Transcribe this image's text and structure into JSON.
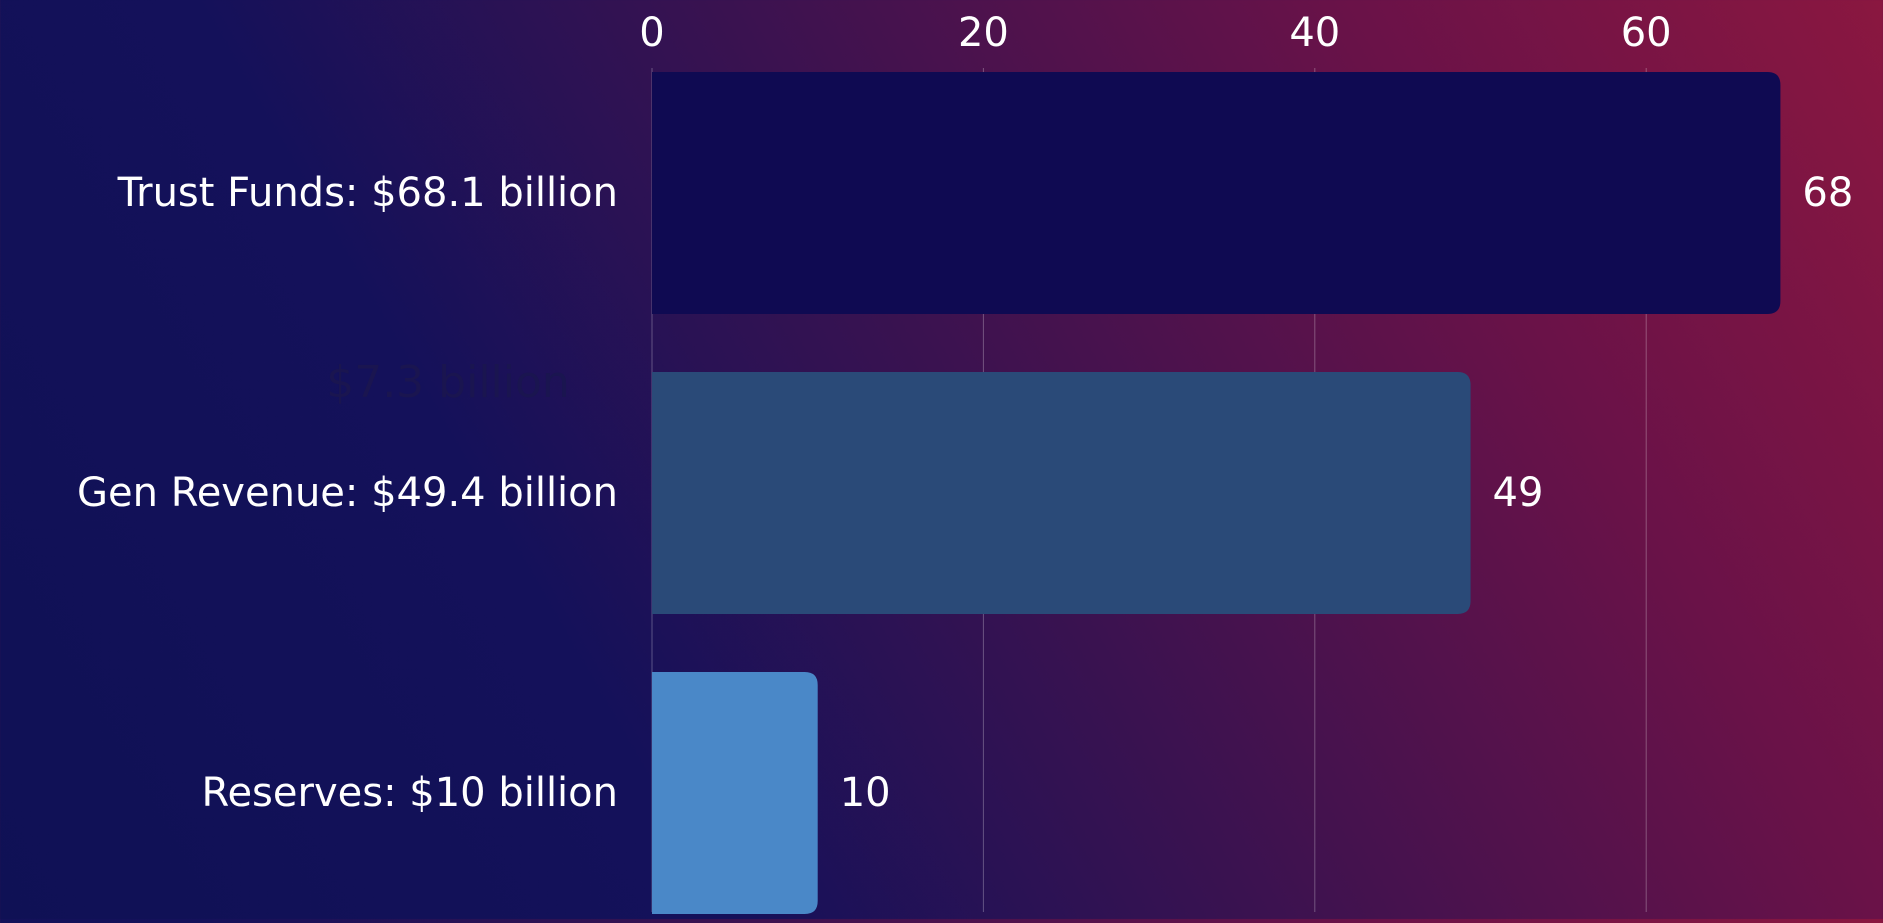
{
  "chart_data": {
    "type": "bar",
    "orientation": "horizontal",
    "categories": [
      "Trust Funds: $68.1 billion",
      "Gen Revenue: $49.4 billion",
      "Reserves: $10 billion"
    ],
    "values": [
      68.1,
      49.4,
      10
    ],
    "value_labels": [
      "68",
      "49",
      "10"
    ],
    "bar_colors": [
      "#0f0a52",
      "#2a4a78",
      "#4a88c8"
    ],
    "annotation": "$7.3 billion",
    "annotation_color": "#1a1550",
    "x_ticks": [
      0,
      20,
      40,
      60
    ],
    "xlim": [
      0,
      70
    ],
    "grid": true,
    "title": "",
    "xlabel": "",
    "ylabel": "",
    "text_color": "#ffffff"
  }
}
